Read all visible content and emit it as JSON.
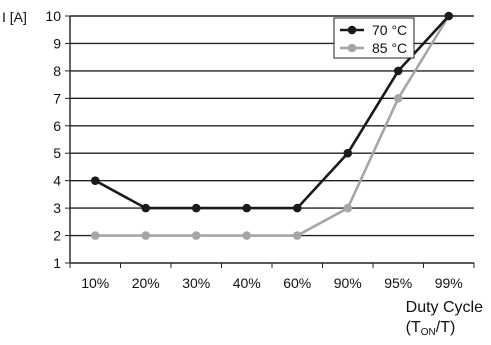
{
  "chart_data": {
    "type": "line",
    "ylabel": "I [A]",
    "xlabel": {
      "main": "Duty Cycle",
      "formula_open": "(T",
      "formula_sub": "ON",
      "formula_close": "/T)"
    },
    "categories": [
      "10%",
      "20%",
      "30%",
      "40%",
      "60%",
      "90%",
      "95%",
      "99%"
    ],
    "y_ticks": [
      "1",
      "2",
      "3",
      "4",
      "5",
      "6",
      "7",
      "8",
      "9",
      "10"
    ],
    "ylim": [
      1,
      10
    ],
    "grid": "horizontal",
    "legend_position": "top-right",
    "series": [
      {
        "name": "70 °C",
        "color": "#1a1a1a",
        "values": [
          4,
          3,
          3,
          3,
          3,
          5,
          8,
          10
        ]
      },
      {
        "name": "85 °C",
        "color": "#a6a6a6",
        "values": [
          2,
          2,
          2,
          2,
          2,
          3,
          7,
          10
        ]
      }
    ]
  }
}
